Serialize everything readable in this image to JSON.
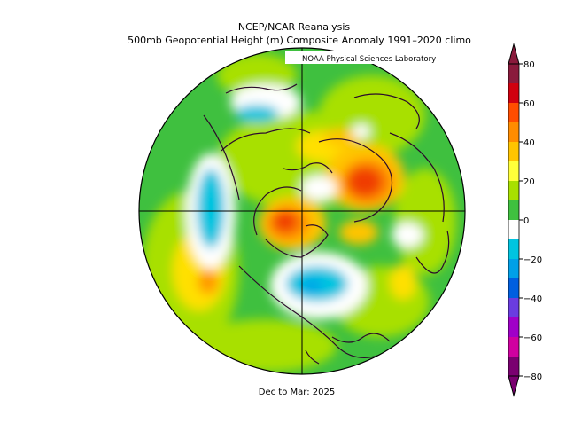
{
  "title": "NCEP/NCAR Reanalysis",
  "subtitle": "500mb Geopotential Height (m) Composite Anomaly 1991–2020 climo",
  "credit": "NOAA Physical Sciences Laboratory",
  "period": "Dec to Mar: 2025",
  "colorbar": {
    "ticks": [
      "80",
      "60",
      "40",
      "20",
      "0",
      "−20",
      "−40",
      "−60",
      "−80"
    ],
    "range": [
      -80,
      80
    ],
    "colors": [
      "#8a1a3c",
      "#d0000f",
      "#ff4d00",
      "#ff8c00",
      "#ffc400",
      "#ffff3a",
      "#a8e000",
      "#3fc03f",
      "#ffffff",
      "#00c4e0",
      "#00a0e8",
      "#005fe0",
      "#6a3ce0",
      "#a000c8",
      "#d000a0",
      "#7a0070"
    ]
  }
}
